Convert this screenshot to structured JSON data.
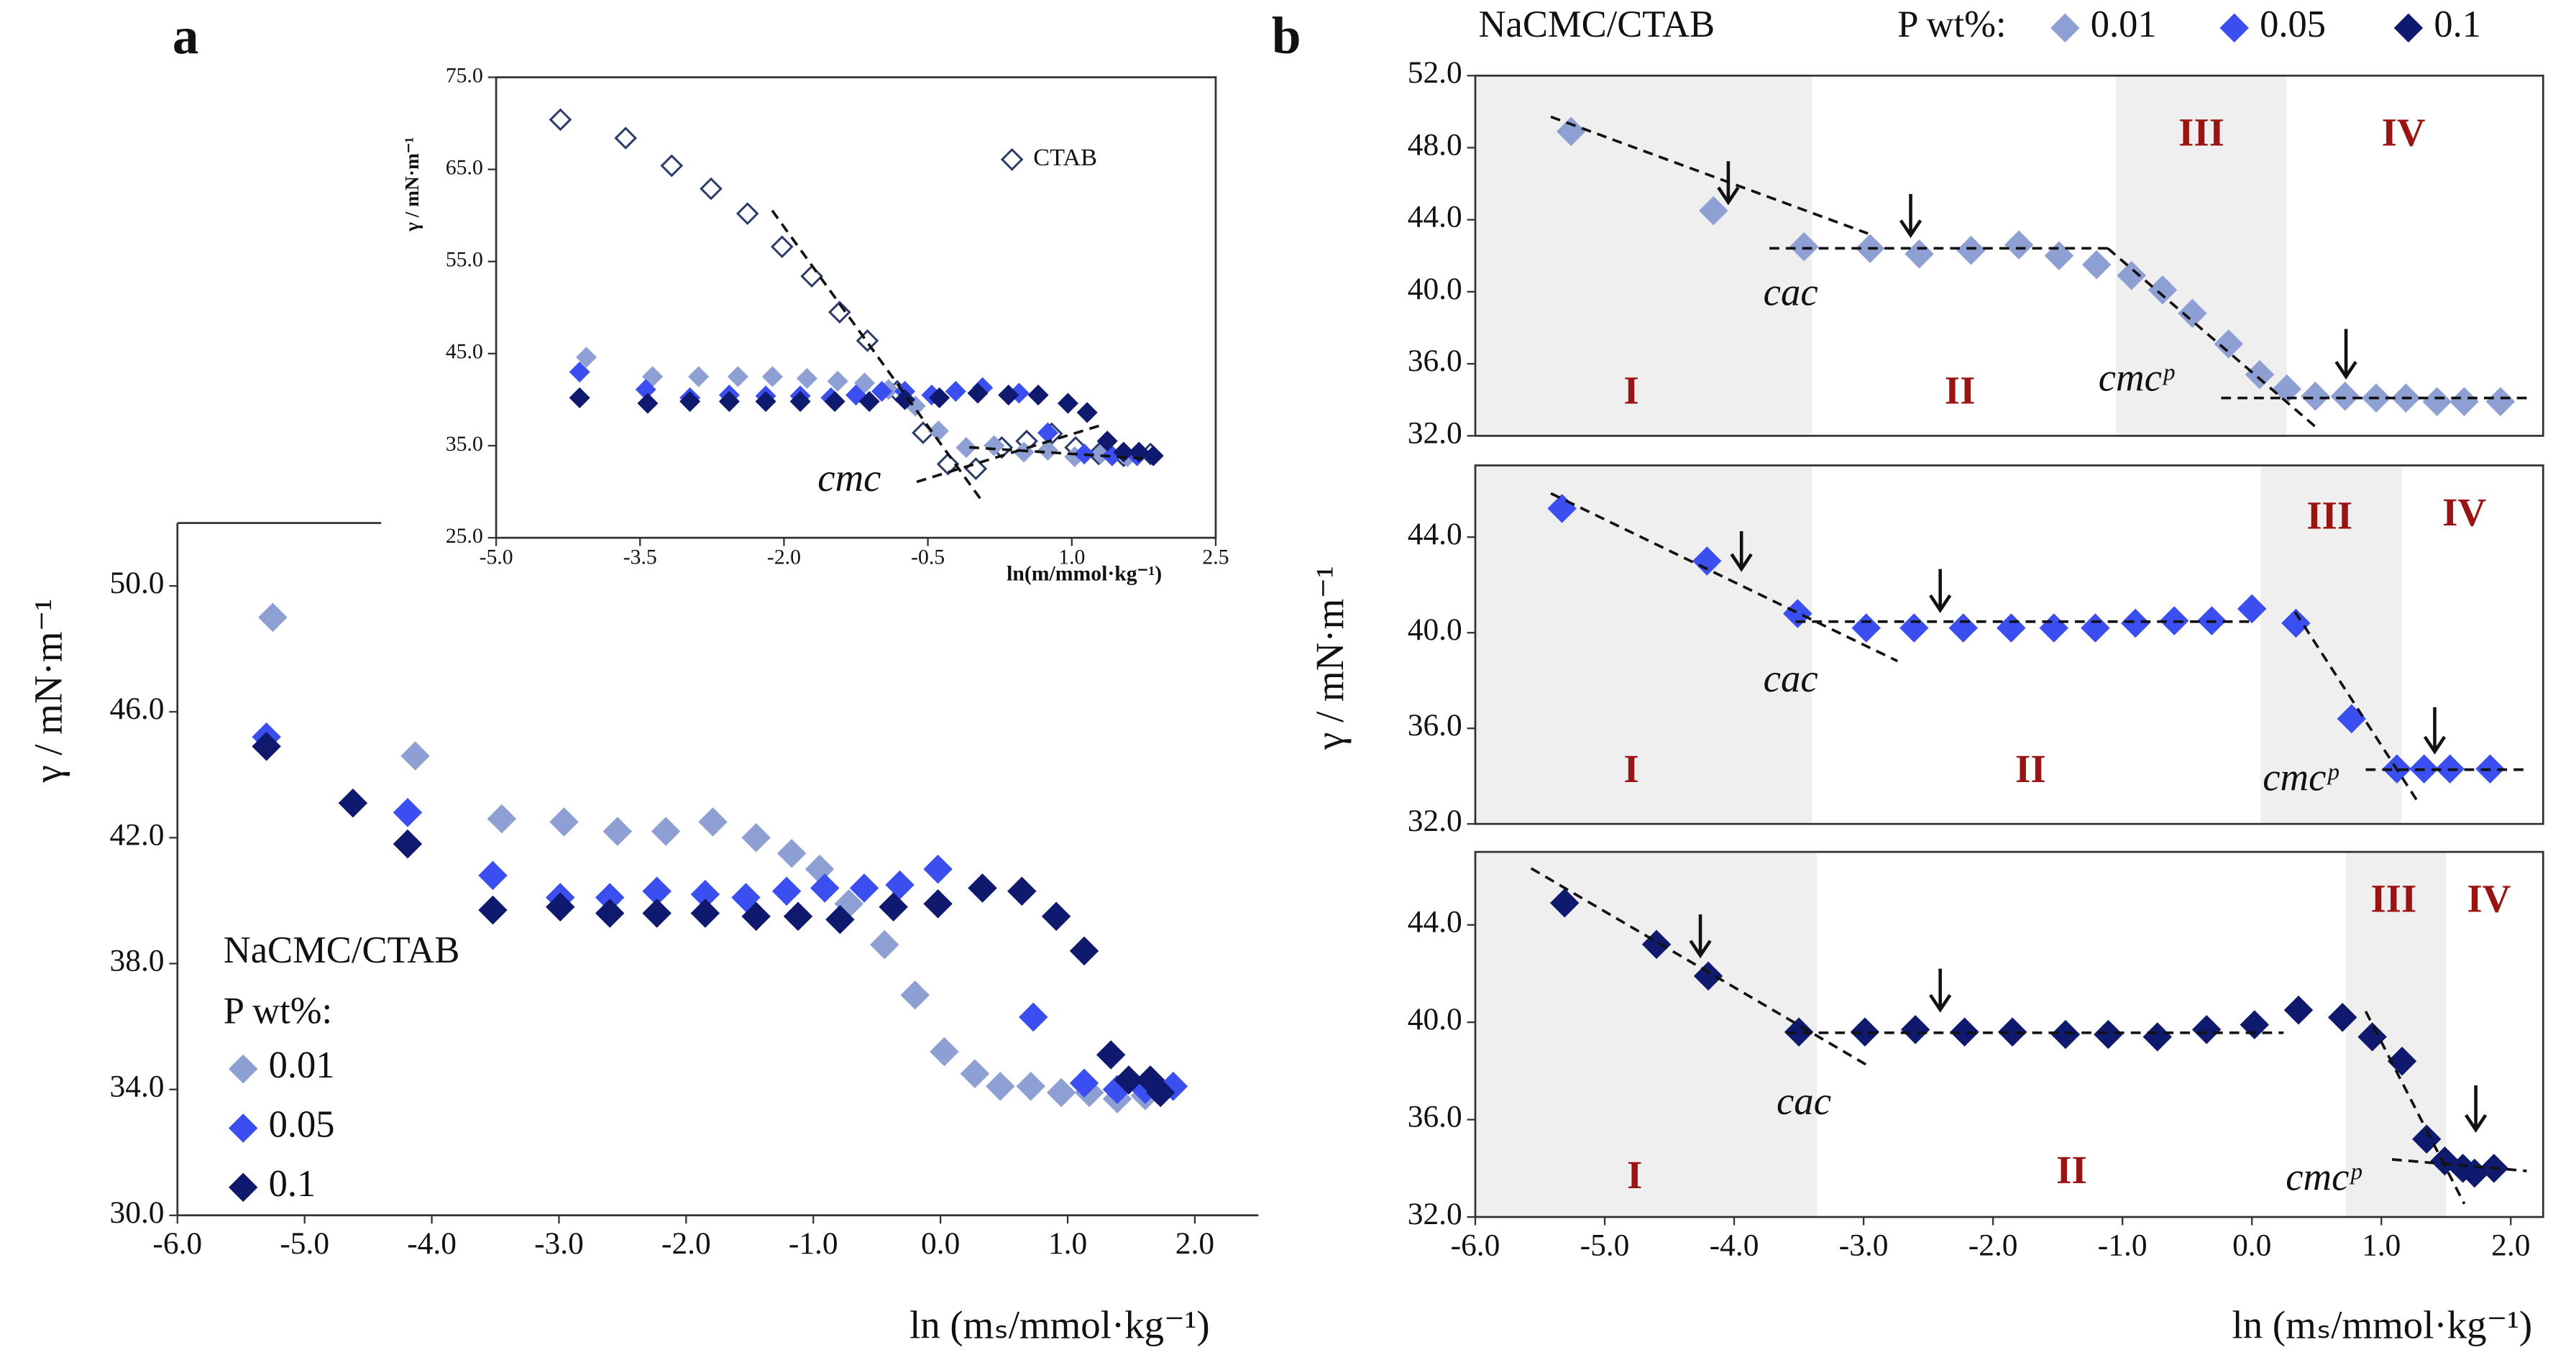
{
  "chart_data": [
    {
      "type": "scatter",
      "panel_label": "a",
      "x_label": "ln (mₛ/mmol·kg⁻¹)",
      "y_label": "γ / mN·m⁻¹",
      "legend_title": "NaCMC/CTAB",
      "legend_subtitle": "P wt%:",
      "xlim": [
        -6,
        2.5
      ],
      "ylim": [
        30,
        52
      ],
      "xticks": [
        {
          "value": -6,
          "label": "-6.0"
        },
        {
          "value": -5,
          "label": "-5.0"
        },
        {
          "value": -4,
          "label": "-4.0"
        },
        {
          "value": -3,
          "label": "-3.0"
        },
        {
          "value": -2,
          "label": "-2.0"
        },
        {
          "value": -1,
          "label": "-1.0"
        },
        {
          "value": 0,
          "label": "0.0"
        },
        {
          "value": 1,
          "label": "1.0"
        },
        {
          "value": 2,
          "label": "2.0"
        }
      ],
      "yticks": [
        {
          "value": 30,
          "label": "30.0"
        },
        {
          "value": 34,
          "label": "34.0"
        },
        {
          "value": 38,
          "label": "38.0"
        },
        {
          "value": 42,
          "label": "42.0"
        },
        {
          "value": 46,
          "label": "46.0"
        },
        {
          "value": 50,
          "label": "50.0"
        }
      ],
      "series": [
        {
          "name": "0.01",
          "color": "#8e9fd4",
          "x": [
            -5.25,
            -4.13,
            -3.45,
            -2.96,
            -2.54,
            -2.16,
            -1.79,
            -1.45,
            -1.17,
            -0.95,
            -0.72,
            -0.44,
            -0.2,
            0.03,
            0.27,
            0.47,
            0.71,
            0.95,
            1.17,
            1.39,
            1.61,
            1.83
          ],
          "values": [
            49.0,
            44.6,
            42.6,
            42.5,
            42.2,
            42.2,
            42.5,
            42.0,
            41.5,
            41.0,
            39.9,
            38.6,
            37.0,
            35.2,
            34.5,
            34.1,
            34.1,
            33.9,
            33.9,
            33.7,
            33.8,
            34.1
          ]
        },
        {
          "name": "0.05",
          "color": "#3b4ef0",
          "x": [
            -5.3,
            -4.19,
            -3.52,
            -2.99,
            -2.6,
            -2.23,
            -1.85,
            -1.53,
            -1.21,
            -0.91,
            -0.6,
            -0.32,
            -0.02,
            0.33,
            0.73,
            1.13,
            1.39,
            1.61,
            1.83
          ],
          "values": [
            45.2,
            42.8,
            40.8,
            40.1,
            40.1,
            40.3,
            40.2,
            40.1,
            40.3,
            40.4,
            40.4,
            40.5,
            41.0,
            40.4,
            36.3,
            34.2,
            34.0,
            34.0,
            34.1
          ]
        },
        {
          "name": "0.1",
          "color": "#0f1a6e",
          "x": [
            -5.3,
            -4.62,
            -4.19,
            -3.52,
            -2.99,
            -2.6,
            -2.23,
            -1.85,
            -1.45,
            -1.12,
            -0.79,
            -0.37,
            -0.02,
            0.33,
            0.64,
            0.91,
            1.13,
            1.34,
            1.48,
            1.65,
            1.73
          ],
          "values": [
            44.9,
            43.1,
            41.8,
            39.7,
            39.8,
            39.6,
            39.6,
            39.6,
            39.5,
            39.5,
            39.4,
            39.8,
            39.9,
            40.4,
            40.3,
            39.5,
            38.4,
            35.1,
            34.3,
            34.3,
            33.9
          ]
        }
      ]
    },
    {
      "type": "scatter",
      "x_label": "ln(m/mmol·kg⁻¹)",
      "y_label": "γ / mN·m⁻¹",
      "annotations": [
        "cmc"
      ],
      "xlim": [
        -5,
        2.5
      ],
      "ylim": [
        25,
        75
      ],
      "xticks": [
        {
          "value": -5,
          "label": "-5.0"
        },
        {
          "value": -3.5,
          "label": "-3.5"
        },
        {
          "value": -2,
          "label": "-2.0"
        },
        {
          "value": -0.5,
          "label": "-0.5"
        },
        {
          "value": 1,
          "label": "1.0"
        },
        {
          "value": 2.5,
          "label": "2.5"
        }
      ],
      "yticks": [
        {
          "value": 25,
          "label": "25.0"
        },
        {
          "value": 35,
          "label": "35.0"
        },
        {
          "value": 45,
          "label": "45.0"
        },
        {
          "value": 55,
          "label": "55.0"
        },
        {
          "value": 65,
          "label": "65.0"
        },
        {
          "value": 75,
          "label": "75.0"
        }
      ],
      "series": [
        {
          "name": "CTAB",
          "color": "#2a3a6a",
          "filled": false,
          "x": [
            -4.33,
            -3.65,
            -3.17,
            -2.76,
            -2.38,
            -2.02,
            -1.71,
            -1.42,
            -1.13,
            -0.82,
            -0.55,
            -0.29,
            0.0,
            0.27,
            0.53,
            0.79,
            1.04,
            1.28,
            1.54,
            1.82
          ],
          "values": [
            70.4,
            68.4,
            65.4,
            62.9,
            60.2,
            56.6,
            53.4,
            49.5,
            46.4,
            40.9,
            36.4,
            33.0,
            32.5,
            34.8,
            35.5,
            36.3,
            34.8,
            34.1,
            33.9,
            34.1
          ]
        },
        {
          "color": "#8e9fd4",
          "x": [
            -4.06,
            -3.37,
            -2.89,
            -2.48,
            -2.12,
            -1.76,
            -1.44,
            -1.16,
            -0.91,
            -0.63,
            -0.39,
            -0.1,
            0.19,
            0.5,
            0.75,
            1.03,
            1.3,
            1.58
          ],
          "values": [
            44.6,
            42.5,
            42.5,
            42.5,
            42.5,
            42.3,
            42.0,
            41.8,
            41.1,
            39.3,
            36.6,
            34.8,
            35.0,
            34.3,
            34.5,
            33.8,
            34.1,
            33.8
          ]
        },
        {
          "color": "#3b4ef0",
          "x": [
            -4.13,
            -3.44,
            -2.98,
            -2.57,
            -2.19,
            -1.83,
            -1.51,
            -1.25,
            -0.98,
            -0.74,
            -0.46,
            -0.21,
            0.07,
            0.45,
            0.75,
            1.13,
            1.42,
            1.68
          ],
          "values": [
            43.0,
            41.1,
            40.2,
            40.5,
            40.4,
            40.4,
            40.2,
            40.5,
            40.9,
            40.9,
            40.5,
            40.9,
            41.3,
            40.7,
            36.4,
            34.1,
            33.9,
            33.9
          ]
        },
        {
          "color": "#0f1a6e",
          "x": [
            -4.13,
            -3.42,
            -2.98,
            -2.57,
            -2.19,
            -1.83,
            -1.47,
            -1.11,
            -0.74,
            -0.38,
            0.02,
            0.34,
            0.65,
            0.96,
            1.16,
            1.37,
            1.54,
            1.7,
            1.85
          ],
          "values": [
            40.2,
            39.6,
            39.8,
            39.8,
            39.8,
            39.8,
            39.8,
            39.8,
            40.0,
            40.2,
            40.7,
            40.5,
            40.5,
            39.6,
            38.6,
            35.5,
            34.3,
            34.3,
            33.9
          ]
        }
      ]
    },
    {
      "type": "scatter",
      "panel_label": "b",
      "legend_title": "NaCMC/CTAB",
      "legend_subtitle": "P wt%:",
      "annotations": [
        "cac",
        "cmcᵖ"
      ],
      "region_labels": [
        "I",
        "II",
        "III",
        "IV"
      ],
      "xlim": [
        -6,
        2.25
      ],
      "ylim": [
        32,
        52
      ],
      "yticks": [
        {
          "value": 32,
          "label": "32.0"
        },
        {
          "value": 36,
          "label": "36.0"
        },
        {
          "value": 40,
          "label": "40.0"
        },
        {
          "value": 44,
          "label": "44.0"
        },
        {
          "value": 48,
          "label": "48.0"
        },
        {
          "value": 52,
          "label": "52.0"
        }
      ],
      "series": [
        {
          "name": "0.01",
          "color": "#8e9fd4",
          "x": [
            -5.26,
            -4.16,
            -3.46,
            -2.95,
            -2.57,
            -2.17,
            -1.8,
            -1.49,
            -1.2,
            -0.93,
            -0.69,
            -0.46,
            -0.18,
            0.06,
            0.27,
            0.49,
            0.72,
            0.96,
            1.19,
            1.43,
            1.64,
            1.92
          ],
          "values": [
            48.9,
            44.5,
            42.5,
            42.4,
            42.1,
            42.3,
            42.6,
            42.0,
            41.5,
            40.9,
            40.1,
            38.8,
            37.1,
            35.4,
            34.6,
            34.2,
            34.2,
            34.1,
            34.1,
            33.9,
            33.9,
            33.9
          ]
        }
      ]
    },
    {
      "type": "scatter",
      "y_label": "γ / mN·m⁻¹",
      "annotations": [
        "cac",
        "cmcᵖ"
      ],
      "region_labels": [
        "I",
        "II",
        "III",
        "IV"
      ],
      "xlim": [
        -6,
        2.25
      ],
      "ylim": [
        32,
        47
      ],
      "yticks": [
        {
          "value": 32,
          "label": "32.0"
        },
        {
          "value": 36,
          "label": "36.0"
        },
        {
          "value": 40,
          "label": "40.0"
        },
        {
          "value": 44,
          "label": "44.0"
        }
      ],
      "series": [
        {
          "name": "0.05",
          "color": "#3b4ef0",
          "x": [
            -5.33,
            -4.21,
            -3.51,
            -2.98,
            -2.61,
            -2.23,
            -1.86,
            -1.53,
            -1.21,
            -0.9,
            -0.6,
            -0.31,
            0.0,
            0.34,
            0.77,
            1.12,
            1.33,
            1.53,
            1.84
          ],
          "values": [
            45.2,
            43.0,
            40.8,
            40.2,
            40.2,
            40.2,
            40.2,
            40.2,
            40.2,
            40.4,
            40.5,
            40.5,
            41.0,
            40.4,
            36.4,
            34.3,
            34.3,
            34.3,
            34.3
          ]
        }
      ]
    },
    {
      "type": "scatter",
      "x_label": "ln (mₛ/mmol·kg⁻¹)",
      "annotations": [
        "cac",
        "cmcᵖ"
      ],
      "region_labels": [
        "I",
        "II",
        "III",
        "IV"
      ],
      "xlim": [
        -6,
        2.25
      ],
      "ylim": [
        32,
        47
      ],
      "xticks": [
        {
          "value": -6,
          "label": "-6.0"
        },
        {
          "value": -5,
          "label": "-5.0"
        },
        {
          "value": -4,
          "label": "-4.0"
        },
        {
          "value": -3,
          "label": "-3.0"
        },
        {
          "value": -2,
          "label": "-2.0"
        },
        {
          "value": -1,
          "label": "-1.0"
        },
        {
          "value": 0,
          "label": "0.0"
        },
        {
          "value": 1,
          "label": "1.0"
        },
        {
          "value": 2,
          "label": "2.0"
        }
      ],
      "yticks": [
        {
          "value": 32,
          "label": "32.0"
        },
        {
          "value": 36,
          "label": "36.0"
        },
        {
          "value": 40,
          "label": "40.0"
        },
        {
          "value": 44,
          "label": "44.0"
        }
      ],
      "series": [
        {
          "name": "0.1",
          "color": "#0f1a6e",
          "x": [
            -5.31,
            -4.6,
            -4.2,
            -3.5,
            -2.99,
            -2.6,
            -2.22,
            -1.85,
            -1.44,
            -1.11,
            -0.73,
            -0.35,
            0.02,
            0.36,
            0.7,
            0.93,
            1.16,
            1.35,
            1.49,
            1.63,
            1.72,
            1.87
          ],
          "values": [
            44.9,
            43.2,
            41.9,
            39.6,
            39.6,
            39.7,
            39.6,
            39.6,
            39.5,
            39.5,
            39.4,
            39.7,
            39.9,
            40.5,
            40.2,
            39.4,
            38.4,
            35.2,
            34.3,
            34.0,
            33.8,
            34.0
          ]
        }
      ]
    }
  ]
}
